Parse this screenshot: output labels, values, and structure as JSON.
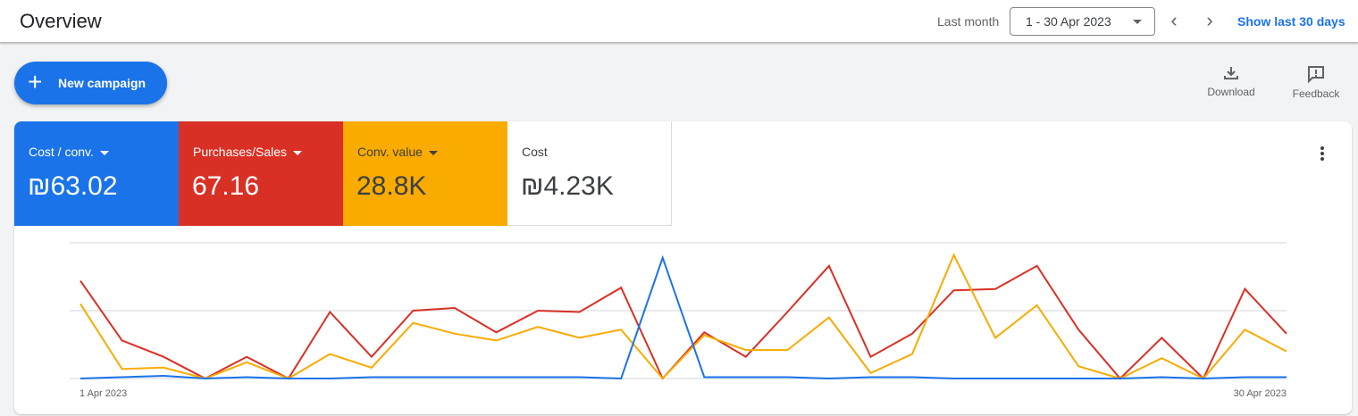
{
  "header": {
    "title": "Overview",
    "range_label": "Last month",
    "date_range": "1 - 30 Apr 2023",
    "show_last": "Show last 30 days",
    "prev_icon": "chevron-left-icon",
    "next_icon": "chevron-right-icon"
  },
  "actions": {
    "new_campaign": "New campaign",
    "download": "Download",
    "feedback": "Feedback"
  },
  "metrics": [
    {
      "name": "Cost / conv.",
      "value": "₪63.02",
      "color": "#1a73e8",
      "dropdown": true
    },
    {
      "name": "Purchases/Sales",
      "value": "67.16",
      "color": "#d93025",
      "dropdown": true
    },
    {
      "name": "Conv. value",
      "value": "28.8K",
      "color": "#f9ab00",
      "dropdown": true
    },
    {
      "name": "Cost",
      "value": "₪4.23K",
      "color": "#ffffff",
      "dropdown": false
    }
  ],
  "chart_data": {
    "type": "line",
    "x_start_label": "1 Apr 2023",
    "x_end_label": "30 Apr 2023",
    "y_axis_labels": "none shown; values are relative (100 = top gridline)",
    "grid": true,
    "series": [
      {
        "name": "Purchases/Sales",
        "color": "#d93025",
        "values": [
          72,
          28,
          16,
          0,
          16,
          0,
          49,
          16,
          50,
          52,
          34,
          50,
          49,
          67,
          0,
          34,
          16,
          49,
          83,
          16,
          33,
          65,
          66,
          83,
          36,
          0,
          30,
          0,
          66,
          33
        ]
      },
      {
        "name": "Conv. value",
        "color": "#f9ab00",
        "values": [
          55,
          7,
          8,
          0,
          12,
          0,
          18,
          8,
          41,
          33,
          28,
          38,
          30,
          36,
          0,
          32,
          21,
          21,
          45,
          4,
          18,
          91,
          30,
          54,
          9,
          0,
          15,
          0,
          36,
          20
        ]
      },
      {
        "name": "Cost / conv.",
        "color": "#1a73e8",
        "values": [
          0,
          1,
          2,
          0,
          1,
          0,
          0,
          1,
          1,
          1,
          1,
          1,
          1,
          0,
          89,
          1,
          1,
          1,
          0,
          1,
          1,
          0,
          0,
          0,
          0,
          0,
          1,
          0,
          1,
          1
        ]
      }
    ]
  }
}
